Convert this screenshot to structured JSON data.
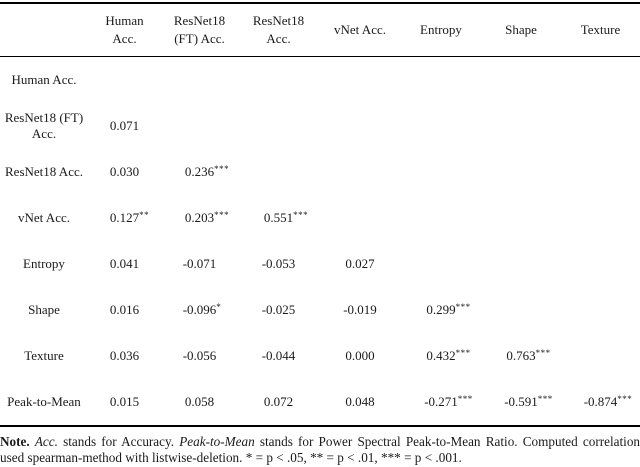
{
  "table": {
    "columns": [
      {
        "lines": [
          "Human",
          "Acc."
        ]
      },
      {
        "lines": [
          "ResNet18",
          "(FT) Acc."
        ]
      },
      {
        "lines": [
          "ResNet18",
          "Acc."
        ]
      },
      {
        "lines": [
          "vNet Acc."
        ]
      },
      {
        "lines": [
          "Entropy"
        ]
      },
      {
        "lines": [
          "Shape"
        ]
      },
      {
        "lines": [
          "Texture"
        ]
      }
    ],
    "rows": [
      {
        "label_lines": [
          "Human Acc."
        ],
        "cells": []
      },
      {
        "label_lines": [
          "ResNet18 (FT)",
          "Acc."
        ],
        "cells": [
          {
            "value": "0.071"
          }
        ]
      },
      {
        "label_lines": [
          "ResNet18 Acc."
        ],
        "cells": [
          {
            "value": "0.030"
          },
          {
            "value": "0.236",
            "stars": "***"
          }
        ]
      },
      {
        "label_lines": [
          "vNet Acc."
        ],
        "cells": [
          {
            "value": "0.127",
            "stars": "**"
          },
          {
            "value": "0.203",
            "stars": "***"
          },
          {
            "value": "0.551",
            "stars": "***"
          }
        ]
      },
      {
        "label_lines": [
          "Entropy"
        ],
        "cells": [
          {
            "value": "0.041"
          },
          {
            "value": "-0.071"
          },
          {
            "value": "-0.053"
          },
          {
            "value": "0.027"
          }
        ]
      },
      {
        "label_lines": [
          "Shape"
        ],
        "cells": [
          {
            "value": "0.016"
          },
          {
            "value": "-0.096",
            "stars": "*"
          },
          {
            "value": "-0.025"
          },
          {
            "value": "-0.019"
          },
          {
            "value": "0.299",
            "stars": "***"
          }
        ]
      },
      {
        "label_lines": [
          "Texture"
        ],
        "cells": [
          {
            "value": "0.036"
          },
          {
            "value": "-0.056"
          },
          {
            "value": "-0.044"
          },
          {
            "value": "0.000"
          },
          {
            "value": "0.432",
            "stars": "***"
          },
          {
            "value": "0.763",
            "stars": "***"
          }
        ]
      },
      {
        "label_lines": [
          "Peak-to-Mean"
        ],
        "cells": [
          {
            "value": "0.015"
          },
          {
            "value": "0.058"
          },
          {
            "value": "0.072"
          },
          {
            "value": "0.048"
          },
          {
            "value": "-0.271",
            "stars": "***"
          },
          {
            "value": "-0.591",
            "stars": "***"
          },
          {
            "value": "-0.874",
            "stars": "***"
          }
        ]
      }
    ]
  },
  "note": {
    "segments": [
      {
        "text": "Note.",
        "bold": true
      },
      {
        "text": " "
      },
      {
        "text": "Acc.",
        "italic": true
      },
      {
        "text": " stands for Accuracy. "
      },
      {
        "text": "Peak-to-Mean",
        "italic": true
      },
      {
        "text": " stands for Power Spectral Peak-to-Mean Ratio. Computed correlation used spearman-method with listwise-deletion. * = p < .05, ** = p < .01, *** = p < .001."
      }
    ]
  },
  "colors": {
    "text": "#1a1a1a",
    "rule": "#000000",
    "background": "#ffffff"
  }
}
